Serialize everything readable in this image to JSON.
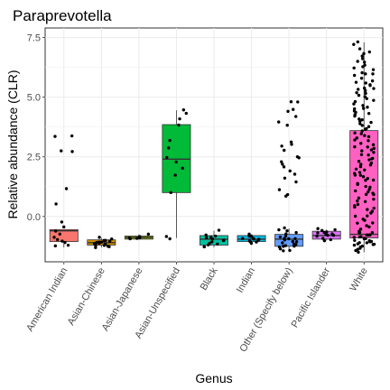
{
  "chart_data": {
    "type": "box",
    "title": "Paraprevotella",
    "xlabel": "Genus",
    "ylabel": "Relative abundance (CLR)",
    "ylim": [
      -1.9,
      7.9
    ],
    "yticks": [
      0.0,
      2.5,
      5.0,
      7.5
    ],
    "ytick_labels": [
      "0.0",
      "2.5",
      "5.0",
      "7.5"
    ],
    "grid": true,
    "legend": "none",
    "categories": [
      "American Indian",
      "Asian-Chinese",
      "Asian-Japanese",
      "Asian-Unspecified",
      "Black",
      "Indian",
      "Other (Specify below)",
      "Pacific Islander",
      "White"
    ],
    "boxes": [
      {
        "category": "American Indian",
        "color": "#F8766D",
        "q1": -1.05,
        "median": -0.6,
        "q3": -0.55,
        "whisker_low": -1.3,
        "whisker_high": -0.55
      },
      {
        "category": "Asian-Chinese",
        "color": "#D39200",
        "q1": -1.2,
        "median": -1.1,
        "q3": -0.98,
        "whisker_low": -1.3,
        "whisker_high": -0.9
      },
      {
        "category": "Asian-Japanese",
        "color": "#93AA00",
        "q1": -0.95,
        "median": -0.88,
        "q3": -0.82,
        "whisker_low": -0.95,
        "whisker_high": -0.75
      },
      {
        "category": "Asian-Unspecified",
        "color": "#00BA38",
        "q1": 1.0,
        "median": 2.4,
        "q3": 3.85,
        "whisker_low": -0.9,
        "whisker_high": 4.45
      },
      {
        "category": "Black",
        "color": "#00C19F",
        "q1": -1.2,
        "median": -0.95,
        "q3": -0.8,
        "whisker_low": -1.3,
        "whisker_high": -0.6
      },
      {
        "category": "Indian",
        "color": "#00B9E3",
        "q1": -1.05,
        "median": -0.95,
        "q3": -0.8,
        "whisker_low": -1.1,
        "whisker_high": -0.75
      },
      {
        "category": "Other (Specify below)",
        "color": "#619CFF",
        "q1": -1.25,
        "median": -0.95,
        "q3": -0.75,
        "whisker_low": -1.45,
        "whisker_high": -0.5
      },
      {
        "category": "Pacific Islander",
        "color": "#DB72FB",
        "q1": -0.95,
        "median": -0.8,
        "q3": -0.62,
        "whisker_low": -1.0,
        "whisker_high": -0.55
      },
      {
        "category": "White",
        "color": "#FF61C3",
        "q1": -0.9,
        "median": -0.75,
        "q3": 3.6,
        "whisker_low": -1.5,
        "whisker_high": 7.3
      }
    ],
    "points": [
      {
        "category": "American Indian",
        "values": [
          3.4,
          3.35,
          2.7,
          2.75,
          1.15,
          0.55,
          -0.25,
          -0.45,
          -0.6,
          -0.75,
          -0.85,
          -0.95,
          -1.05,
          -1.1,
          -1.2,
          -1.25
        ]
      },
      {
        "category": "Asian-Chinese",
        "values": [
          -0.9,
          -0.95,
          -1.0,
          -1.05,
          -1.08,
          -1.1,
          -1.12,
          -1.15,
          -1.18,
          -1.2,
          -1.22,
          -1.25,
          -1.0,
          -1.05,
          -1.1,
          -1.15,
          -1.2,
          -1.28
        ]
      },
      {
        "category": "Asian-Japanese",
        "values": [
          -0.75,
          -0.85,
          -0.88,
          -0.9,
          -0.9,
          -0.92
        ]
      },
      {
        "category": "Asian-Unspecified",
        "values": [
          4.45,
          4.3,
          4.1,
          3.85,
          3.2,
          2.9,
          2.5,
          2.3,
          2.0,
          1.7,
          1.0,
          -0.85,
          -0.95
        ]
      },
      {
        "category": "Black",
        "values": [
          -0.6,
          -0.75,
          -0.85,
          -0.9,
          -0.95,
          -1.0,
          -1.05,
          -1.1,
          -1.15,
          -1.2,
          -1.25,
          -1.3,
          -0.9,
          -1.0
        ]
      },
      {
        "category": "Indian",
        "values": [
          -0.75,
          -0.8,
          -0.85,
          -0.9,
          -0.95,
          -0.95,
          -1.0,
          -1.0,
          -1.05,
          -1.05,
          -1.1,
          -0.9,
          -0.85
        ]
      },
      {
        "category": "Other (Specify below)",
        "values": [
          4.8,
          4.8,
          4.5,
          4.4,
          4.2,
          3.95,
          3.85,
          3.1,
          3.0,
          2.95,
          2.8,
          2.5,
          2.45,
          2.3,
          2.2,
          2.1,
          1.9,
          1.75,
          1.6,
          1.45,
          1.1,
          0.9,
          0.85,
          -0.45,
          -0.55,
          -0.6,
          -0.7,
          -0.75,
          -0.8,
          -0.85,
          -0.9,
          -0.95,
          -1.0,
          -1.05,
          -1.1,
          -1.15,
          -1.2,
          -1.25,
          -1.3,
          -1.35,
          -1.4,
          -1.45,
          -0.95,
          -1.05,
          -1.15,
          -1.25
        ]
      },
      {
        "category": "Pacific Islander",
        "values": [
          -0.5,
          -0.55,
          -0.6,
          -0.65,
          -0.7,
          -0.72,
          -0.75,
          -0.8,
          -0.85,
          -0.9,
          -0.95,
          -1.0,
          -0.7,
          -0.8
        ]
      },
      {
        "category": "White",
        "values": [
          7.3,
          7.2,
          7.05,
          6.9,
          6.8,
          6.7,
          6.6,
          6.5,
          6.45,
          6.35,
          6.25,
          6.15,
          6.05,
          5.95,
          5.9,
          5.8,
          5.7,
          5.65,
          5.55,
          5.5,
          5.4,
          5.35,
          5.25,
          5.15,
          5.1,
          5.0,
          4.95,
          4.85,
          4.8,
          4.7,
          4.65,
          4.55,
          4.5,
          4.4,
          4.35,
          4.25,
          4.2,
          4.1,
          4.05,
          3.95,
          3.9,
          3.8,
          3.75,
          3.65,
          3.6,
          3.5,
          3.45,
          3.35,
          3.3,
          3.2,
          3.15,
          3.05,
          3.0,
          2.9,
          2.85,
          2.75,
          2.7,
          2.6,
          2.55,
          2.45,
          2.4,
          2.3,
          2.25,
          2.15,
          2.1,
          2.0,
          1.95,
          1.85,
          1.8,
          1.7,
          1.65,
          1.55,
          1.5,
          1.4,
          1.35,
          1.25,
          1.2,
          1.1,
          1.05,
          0.95,
          0.9,
          0.8,
          0.75,
          0.65,
          0.6,
          0.5,
          0.45,
          0.35,
          0.3,
          0.2,
          0.15,
          0.05,
          0.0,
          -0.1,
          -0.15,
          -0.25,
          -0.3,
          -0.4,
          -0.45,
          -0.55,
          -0.6,
          -0.65,
          -0.7,
          -0.75,
          -0.8,
          -0.85,
          -0.9,
          -0.95,
          -1.0,
          -1.05,
          -1.1,
          -1.15,
          -1.2,
          -1.25,
          -1.3,
          -1.35,
          -1.4,
          -1.45,
          -1.5,
          -0.7,
          -0.8,
          -0.9,
          -1.0,
          -1.1,
          -1.2,
          -0.75,
          -0.85,
          -0.95,
          -1.05,
          -1.15,
          6.2,
          5.6,
          5.2,
          4.6,
          4.0,
          3.4,
          2.8,
          2.2,
          1.6,
          1.0,
          0.4,
          6.0,
          5.3,
          4.3,
          3.7,
          2.9,
          2.35,
          1.75,
          1.15
        ]
      }
    ]
  }
}
